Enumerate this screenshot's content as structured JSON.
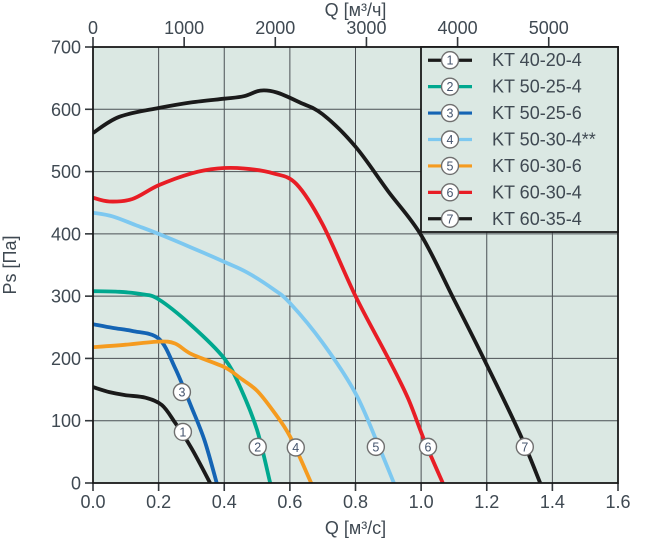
{
  "style": {
    "page_background": "#ffffff",
    "plot_background": "#dbe8e3",
    "grid_color": "#4b5055",
    "border_color": "#191919",
    "tick_color": "#33383c",
    "text_color": "#3f4952",
    "marker_fill": "#ffffff",
    "marker_stroke": "#6f6f6f",
    "marker_text_color": "#45556e"
  },
  "chart_data": {
    "type": "line",
    "title": "",
    "axes": {
      "bottom": {
        "label": "Q [м³/с]",
        "range": [
          0,
          1.6
        ],
        "ticks": [
          0.0,
          0.2,
          0.4,
          0.6,
          0.8,
          1.0,
          1.2,
          1.4,
          1.6
        ]
      },
      "top": {
        "label": "Q [м³/ч]",
        "ticks": [
          0,
          1000,
          2000,
          3000,
          4000,
          5000
        ],
        "m3h_per_m3s": 3600
      },
      "left": {
        "label": "Ps [Па]",
        "range": [
          0,
          700
        ],
        "ticks": [
          0,
          100,
          200,
          300,
          400,
          500,
          600,
          700
        ]
      }
    },
    "grid": {
      "x_step": 0.2,
      "y_step": 100,
      "visible": true
    },
    "legend_position": "top-right",
    "series": [
      {
        "number": "1",
        "label": "KT 40-20-4",
        "color": "#1a1a1a",
        "points": [
          [
            0,
            154
          ],
          [
            0.05,
            146
          ],
          [
            0.1,
            141
          ],
          [
            0.16,
            137
          ],
          [
            0.21,
            125
          ],
          [
            0.25,
            97
          ],
          [
            0.3,
            56
          ],
          [
            0.357,
            0
          ]
        ]
      },
      {
        "number": "2",
        "label": "KT 50-25-4",
        "color": "#00a88f",
        "points": [
          [
            0,
            308
          ],
          [
            0.08,
            307
          ],
          [
            0.15,
            303
          ],
          [
            0.2,
            295
          ],
          [
            0.3,
            253
          ],
          [
            0.4,
            200
          ],
          [
            0.45,
            152
          ],
          [
            0.5,
            85
          ],
          [
            0.54,
            0
          ]
        ]
      },
      {
        "number": "3",
        "label": "KT 50-25-6",
        "color": "#1464b4",
        "points": [
          [
            0,
            255
          ],
          [
            0.06,
            249
          ],
          [
            0.12,
            244
          ],
          [
            0.2,
            232
          ],
          [
            0.25,
            185
          ],
          [
            0.3,
            122
          ],
          [
            0.34,
            68
          ],
          [
            0.377,
            0
          ]
        ]
      },
      {
        "number": "4",
        "label": "KT 50-30-4**",
        "color": "#7dc8f0",
        "points": [
          [
            0,
            434
          ],
          [
            0.06,
            428
          ],
          [
            0.13,
            414
          ],
          [
            0.2,
            400
          ],
          [
            0.3,
            378
          ],
          [
            0.4,
            355
          ],
          [
            0.47,
            338
          ],
          [
            0.55,
            311
          ],
          [
            0.6,
            289
          ],
          [
            0.7,
            225
          ],
          [
            0.8,
            144
          ],
          [
            0.87,
            60
          ],
          [
            0.917,
            0
          ]
        ]
      },
      {
        "number": "5",
        "label": "KT 60-30-6",
        "color": "#f59b1f",
        "points": [
          [
            0,
            218
          ],
          [
            0.1,
            222
          ],
          [
            0.2,
            227
          ],
          [
            0.25,
            224
          ],
          [
            0.3,
            207
          ],
          [
            0.4,
            186
          ],
          [
            0.45,
            168
          ],
          [
            0.5,
            148
          ],
          [
            0.55,
            115
          ],
          [
            0.6,
            75
          ],
          [
            0.665,
            0
          ]
        ]
      },
      {
        "number": "6",
        "label": "KT 60-30-4",
        "color": "#e81d25",
        "points": [
          [
            0,
            458
          ],
          [
            0.05,
            452
          ],
          [
            0.12,
            456
          ],
          [
            0.2,
            478
          ],
          [
            0.3,
            497
          ],
          [
            0.38,
            505
          ],
          [
            0.46,
            505
          ],
          [
            0.55,
            497
          ],
          [
            0.62,
            480
          ],
          [
            0.7,
            415
          ],
          [
            0.8,
            300
          ],
          [
            0.9,
            200
          ],
          [
            0.96,
            136
          ],
          [
            1.01,
            68
          ],
          [
            1.066,
            0
          ]
        ]
      },
      {
        "number": "7",
        "label": "KT 60-35-4",
        "color": "#1a1a1a",
        "points": [
          [
            0,
            562
          ],
          [
            0.08,
            588
          ],
          [
            0.2,
            602
          ],
          [
            0.3,
            611
          ],
          [
            0.4,
            617
          ],
          [
            0.46,
            621
          ],
          [
            0.51,
            630
          ],
          [
            0.56,
            627
          ],
          [
            0.63,
            611
          ],
          [
            0.7,
            592
          ],
          [
            0.8,
            540
          ],
          [
            0.9,
            468
          ],
          [
            1.0,
            398
          ],
          [
            1.1,
            295
          ],
          [
            1.2,
            190
          ],
          [
            1.3,
            80
          ],
          [
            1.363,
            0
          ]
        ]
      }
    ],
    "plot_markers": [
      {
        "label": "1",
        "x": 0.274,
        "y": 82
      },
      {
        "label": "2",
        "x": 0.502,
        "y": 58
      },
      {
        "label": "3",
        "x": 0.271,
        "y": 146
      },
      {
        "label": "4",
        "x": 0.618,
        "y": 57
      },
      {
        "label": "5",
        "x": 0.862,
        "y": 58
      },
      {
        "label": "6",
        "x": 1.021,
        "y": 58
      },
      {
        "label": "7",
        "x": 1.316,
        "y": 58
      }
    ]
  }
}
